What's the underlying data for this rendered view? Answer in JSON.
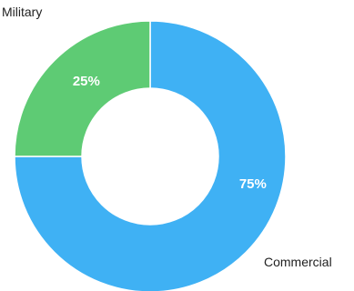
{
  "colors": {
    "commercial": "#3fb1f4",
    "military": "#5ecb74",
    "separator": "#ffffff"
  },
  "chart_data": {
    "type": "pie",
    "variant": "donut",
    "title": "",
    "start_angle_deg": 0,
    "direction": "clockwise",
    "slices": [
      {
        "name": "Commercial",
        "value": 75,
        "label": "75%",
        "color": "#3fb1f4"
      },
      {
        "name": "Military",
        "value": 25,
        "label": "25%",
        "color": "#5ecb74"
      }
    ],
    "legend": "none"
  }
}
